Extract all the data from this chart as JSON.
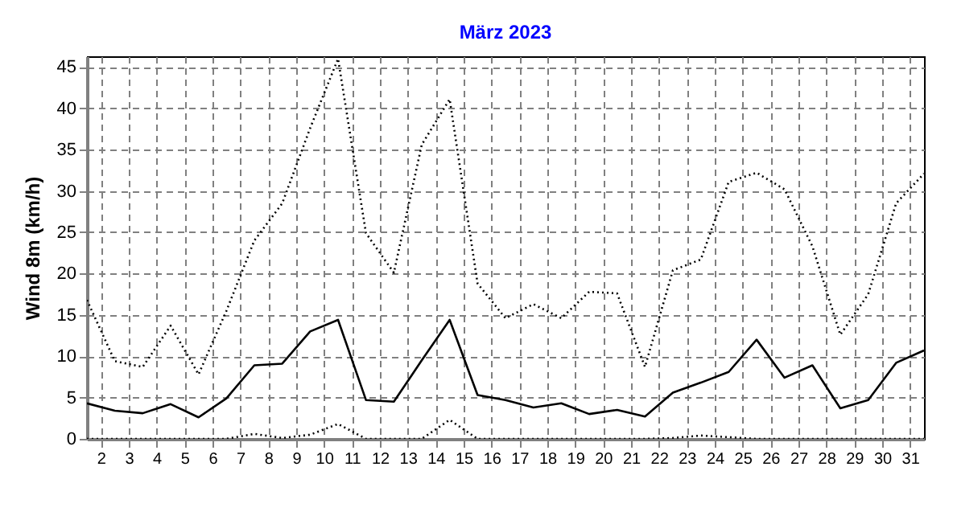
{
  "chart_data": {
    "type": "line",
    "title": "März 2023",
    "ylabel": "Wind 8m  (km/h)",
    "x": [
      1.5,
      2.5,
      3.5,
      4.5,
      5.5,
      6.5,
      7.5,
      8.5,
      9.5,
      10.5,
      11.5,
      12.5,
      13.5,
      14.5,
      15.5,
      16.5,
      17.5,
      18.5,
      19.5,
      20.5,
      21.5,
      22.5,
      23.5,
      24.5,
      25.5,
      26.5,
      27.5,
      28.5,
      29.5,
      30.5,
      31.5
    ],
    "series": [
      {
        "color": "#000000",
        "line_style": "dotted",
        "values": [
          16.8,
          9.4,
          8.7,
          13.7,
          7.8,
          15.5,
          24.0,
          28.5,
          37.6,
          46.0,
          24.9,
          20.1,
          35.6,
          41.1,
          18.8,
          14.6,
          16.3,
          14.6,
          17.8,
          17.6,
          8.7,
          20.4,
          21.7,
          31.1,
          32.2,
          30.2,
          23.3,
          12.6,
          17.5,
          28.5,
          32.1
        ]
      },
      {
        "color": "#000000",
        "line_style": "solid",
        "values": [
          4.3,
          3.4,
          3.1,
          4.2,
          2.6,
          4.9,
          8.9,
          9.1,
          13.0,
          14.4,
          4.7,
          4.5,
          9.5,
          14.4,
          5.3,
          4.7,
          3.8,
          4.3,
          3.0,
          3.5,
          2.7,
          5.6,
          6.8,
          8.1,
          12.0,
          7.4,
          8.9,
          3.7,
          4.7,
          9.2,
          10.7
        ]
      },
      {
        "color": "#000000",
        "line_style": "dotted",
        "values": [
          0,
          0,
          0,
          0,
          0,
          0,
          0.6,
          0.1,
          0.5,
          1.8,
          0,
          0,
          0,
          2.3,
          0,
          0,
          0,
          0,
          0,
          0,
          0,
          0.1,
          0.4,
          0.2,
          0,
          0,
          0,
          0,
          0,
          0,
          0
        ]
      }
    ],
    "xlim": [
      1.5,
      31.5
    ],
    "xticks": [
      2,
      3,
      4,
      5,
      6,
      7,
      8,
      9,
      10,
      11,
      12,
      13,
      14,
      15,
      16,
      17,
      18,
      19,
      20,
      21,
      22,
      23,
      24,
      25,
      26,
      27,
      28,
      29,
      30,
      31
    ],
    "ylim": [
      0,
      46.3
    ],
    "yticks": [
      0,
      5,
      10,
      15,
      20,
      25,
      30,
      35,
      40,
      45
    ],
    "grid": true,
    "marker": "none"
  }
}
